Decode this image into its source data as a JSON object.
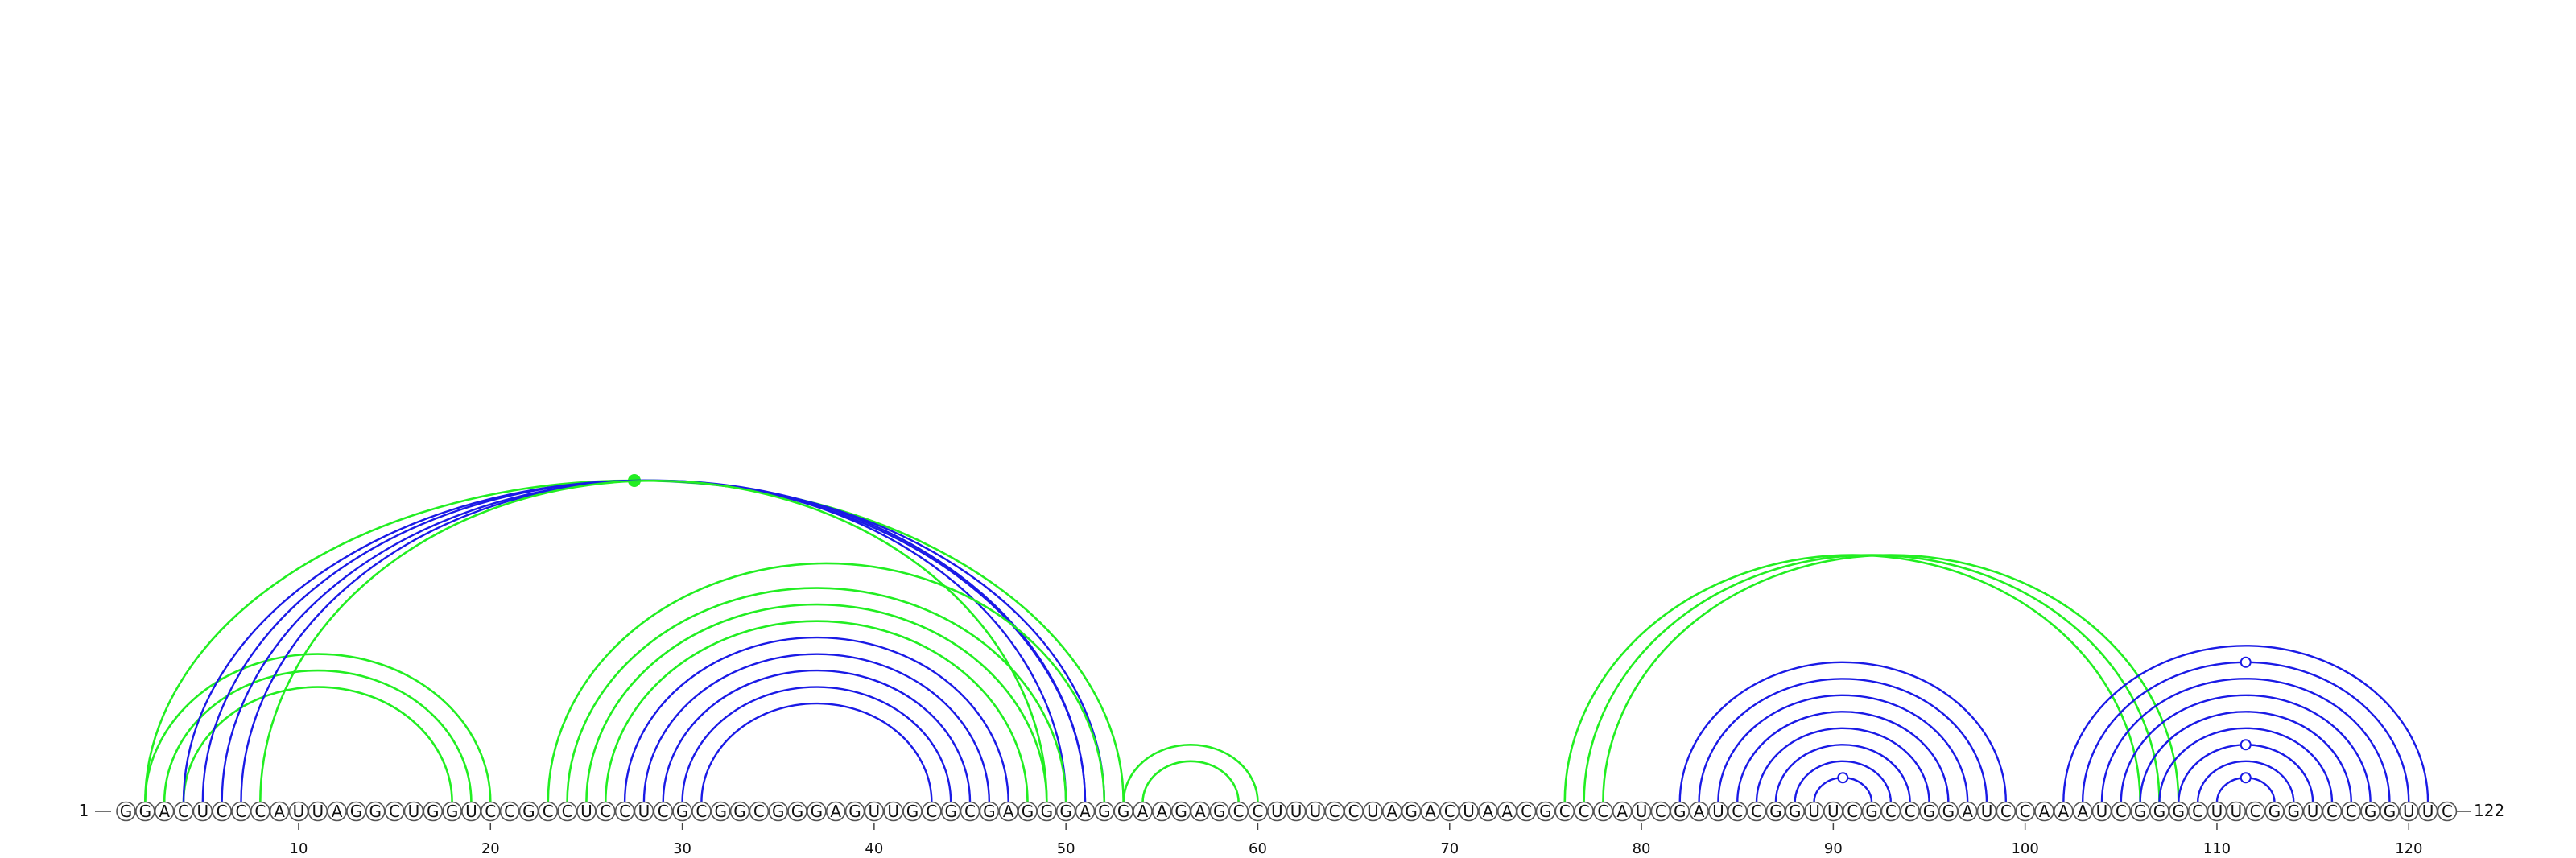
{
  "sequence": "GGACUCCCAUUAGGCUGGUCCGCCUCCUCGCGGCGGGAGUUGCGCGAGGGAGGAAGAGCCUUUCCUAGACUAACGCCCAUCGAUCCGGUUCGCCGGAUCCAAAUCGGGCUUCGGUCCGGUUC",
  "start_label": "1",
  "end_label": "122",
  "tick_labels": [
    "10",
    "20",
    "30",
    "40",
    "50",
    "60",
    "70",
    "80",
    "90",
    "100",
    "110",
    "120"
  ],
  "colors": {
    "green": "#22ee22",
    "blue": "#1a1ae6"
  },
  "arcs": [
    {
      "color": "green",
      "i": 2,
      "j": 20
    },
    {
      "color": "green",
      "i": 3,
      "j": 19
    },
    {
      "color": "green",
      "i": 4,
      "j": 18
    },
    {
      "color": "green",
      "i": 2,
      "j": 53,
      "marker": "filled"
    },
    {
      "color": "blue",
      "i": 4,
      "j": 52
    },
    {
      "color": "blue",
      "i": 5,
      "j": 51
    },
    {
      "color": "blue",
      "i": 6,
      "j": 51
    },
    {
      "color": "blue",
      "i": 7,
      "j": 50
    },
    {
      "color": "green",
      "i": 8,
      "j": 49
    },
    {
      "color": "green",
      "i": 23,
      "j": 52
    },
    {
      "color": "green",
      "i": 24,
      "j": 50
    },
    {
      "color": "green",
      "i": 25,
      "j": 49
    },
    {
      "color": "green",
      "i": 26,
      "j": 48
    },
    {
      "color": "blue",
      "i": 27,
      "j": 47
    },
    {
      "color": "blue",
      "i": 28,
      "j": 46
    },
    {
      "color": "blue",
      "i": 29,
      "j": 45
    },
    {
      "color": "blue",
      "i": 30,
      "j": 44
    },
    {
      "color": "blue",
      "i": 31,
      "j": 43
    },
    {
      "color": "green",
      "i": 53,
      "j": 60
    },
    {
      "color": "green",
      "i": 54,
      "j": 59
    },
    {
      "color": "green",
      "i": 76,
      "j": 106
    },
    {
      "color": "green",
      "i": 77,
      "j": 107
    },
    {
      "color": "green",
      "i": 78,
      "j": 108
    },
    {
      "color": "blue",
      "i": 82,
      "j": 99
    },
    {
      "color": "blue",
      "i": 83,
      "j": 98
    },
    {
      "color": "blue",
      "i": 84,
      "j": 97
    },
    {
      "color": "blue",
      "i": 85,
      "j": 96
    },
    {
      "color": "blue",
      "i": 86,
      "j": 95
    },
    {
      "color": "blue",
      "i": 87,
      "j": 94
    },
    {
      "color": "blue",
      "i": 88,
      "j": 93
    },
    {
      "color": "blue",
      "i": 89,
      "j": 92,
      "marker": "open"
    },
    {
      "color": "blue",
      "i": 102,
      "j": 121
    },
    {
      "color": "blue",
      "i": 103,
      "j": 120,
      "marker": "open"
    },
    {
      "color": "blue",
      "i": 104,
      "j": 119
    },
    {
      "color": "blue",
      "i": 105,
      "j": 118
    },
    {
      "color": "blue",
      "i": 106,
      "j": 117
    },
    {
      "color": "blue",
      "i": 107,
      "j": 116
    },
    {
      "color": "blue",
      "i": 108,
      "j": 115,
      "marker": "open"
    },
    {
      "color": "blue",
      "i": 109,
      "j": 114
    },
    {
      "color": "blue",
      "i": 110,
      "j": 113,
      "marker": "open"
    }
  ]
}
